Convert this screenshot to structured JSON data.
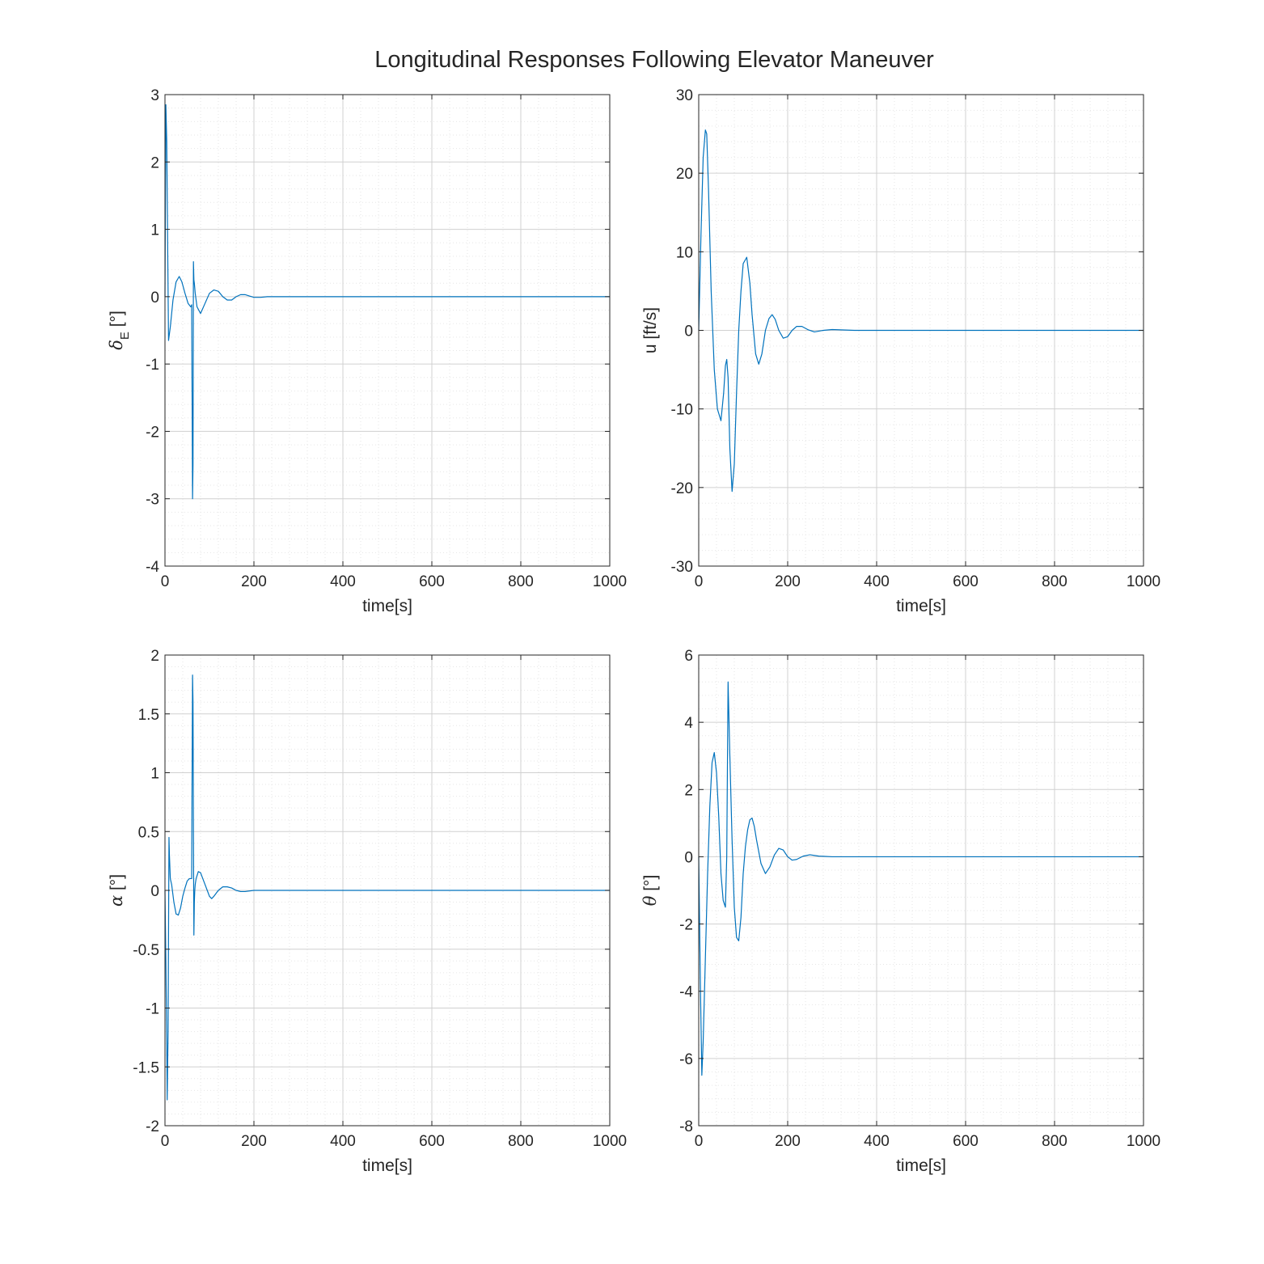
{
  "figure": {
    "title": "Longitudinal Responses Following Elevator Maneuver"
  },
  "colors": {
    "line": "#0072BD",
    "axis": "#262626",
    "grid_major": "#d0d0d0",
    "grid_minor": "#e6e6e6"
  },
  "chart_data": [
    {
      "type": "line",
      "title": "",
      "xlabel": "time[s]",
      "ylabel": "δE [°]",
      "ylabel_symbol": "δ",
      "ylabel_sub": "E",
      "ylabel_unit": "[°]",
      "xlim": [
        0,
        1000
      ],
      "ylim": [
        -4,
        3
      ],
      "xticks": [
        0,
        200,
        400,
        600,
        800,
        1000
      ],
      "yticks": [
        -4,
        -3,
        -2,
        -1,
        0,
        1,
        2,
        3
      ],
      "grid": true,
      "series": [
        {
          "x": [
            0,
            2,
            4,
            6,
            8,
            12,
            18,
            25,
            32,
            38,
            45,
            52,
            58,
            60,
            61,
            62,
            63,
            64,
            65,
            66,
            68,
            72,
            80,
            90,
            100,
            110,
            120,
            130,
            140,
            150,
            160,
            170,
            180,
            190,
            200,
            215,
            230,
            250,
            300,
            400,
            500,
            600,
            700,
            800,
            900,
            1000
          ],
          "y": [
            0,
            2.85,
            2.3,
            0.8,
            -0.65,
            -0.45,
            -0.05,
            0.22,
            0.3,
            0.22,
            0.05,
            -0.1,
            -0.15,
            -0.12,
            -1.5,
            -3.0,
            -2.5,
            0.52,
            0.25,
            0.2,
            0.05,
            -0.15,
            -0.25,
            -0.1,
            0.05,
            0.1,
            0.08,
            0.0,
            -0.05,
            -0.05,
            0.0,
            0.03,
            0.03,
            0.01,
            -0.01,
            -0.01,
            0.0,
            0.0,
            0.0,
            0.0,
            0.0,
            0.0,
            0.0,
            0.0,
            0.0,
            0.0
          ]
        }
      ]
    },
    {
      "type": "line",
      "title": "",
      "xlabel": "time[s]",
      "ylabel": "u [ft/s]",
      "xlim": [
        0,
        1000
      ],
      "ylim": [
        -30,
        30
      ],
      "xticks": [
        0,
        200,
        400,
        600,
        800,
        1000
      ],
      "yticks": [
        -30,
        -20,
        -10,
        0,
        10,
        20,
        30
      ],
      "grid": true,
      "series": [
        {
          "x": [
            0,
            5,
            10,
            15,
            18,
            22,
            28,
            35,
            42,
            50,
            56,
            60,
            63,
            66,
            70,
            75,
            80,
            85,
            90,
            95,
            100,
            108,
            115,
            120,
            128,
            135,
            142,
            150,
            158,
            165,
            172,
            180,
            190,
            200,
            210,
            220,
            232,
            245,
            260,
            280,
            300,
            350,
            400,
            500,
            600,
            700,
            800,
            900,
            1000
          ],
          "y": [
            0,
            12,
            22,
            25.5,
            25,
            18,
            5,
            -5,
            -10,
            -11.5,
            -8,
            -4.5,
            -3.7,
            -6,
            -15,
            -20.5,
            -17,
            -8,
            0,
            5,
            8.5,
            9.3,
            6,
            2,
            -3,
            -4.3,
            -3,
            0,
            1.5,
            2,
            1.4,
            0,
            -1,
            -0.8,
            0,
            0.5,
            0.5,
            0.1,
            -0.2,
            0,
            0.1,
            0,
            0,
            0,
            0,
            0,
            0,
            0,
            0
          ]
        }
      ]
    },
    {
      "type": "line",
      "title": "",
      "xlabel": "time[s]",
      "ylabel": "α [°]",
      "ylabel_symbol": "α",
      "ylabel_unit": "[°]",
      "xlim": [
        0,
        1000
      ],
      "ylim": [
        -2,
        2
      ],
      "xticks": [
        0,
        200,
        400,
        600,
        800,
        1000
      ],
      "yticks": [
        -2,
        -1.5,
        -1,
        -0.5,
        0,
        0.5,
        1,
        1.5,
        2
      ],
      "grid": true,
      "series": [
        {
          "x": [
            0,
            2,
            4,
            5,
            7,
            9,
            10,
            12,
            15,
            20,
            25,
            30,
            35,
            40,
            45,
            50,
            55,
            60,
            61,
            62,
            63,
            64,
            65,
            66,
            67,
            68,
            70,
            75,
            80,
            85,
            90,
            95,
            100,
            105,
            110,
            120,
            130,
            140,
            150,
            160,
            170,
            180,
            200,
            220,
            250,
            300,
            400,
            500,
            600,
            700,
            800,
            900,
            1000
          ],
          "y": [
            0,
            -0.6,
            -1.3,
            -1.78,
            -1.2,
            0.45,
            0.3,
            0.1,
            0.05,
            -0.1,
            -0.2,
            -0.21,
            -0.15,
            -0.05,
            0.02,
            0.08,
            0.1,
            0.1,
            1.0,
            1.83,
            1.6,
            0.5,
            -0.38,
            -0.1,
            0.0,
            0.05,
            0.1,
            0.16,
            0.15,
            0.1,
            0.05,
            0.0,
            -0.05,
            -0.07,
            -0.05,
            0.0,
            0.03,
            0.03,
            0.02,
            0.0,
            -0.01,
            -0.01,
            0.0,
            0.0,
            0.0,
            0.0,
            0.0,
            0.0,
            0.0,
            0.0,
            0.0,
            0.0,
            0.0
          ]
        }
      ]
    },
    {
      "type": "line",
      "title": "",
      "xlabel": "time[s]",
      "ylabel": "θ [°]",
      "ylabel_symbol": "θ",
      "ylabel_unit": "[°]",
      "xlim": [
        0,
        1000
      ],
      "ylim": [
        -8,
        6
      ],
      "xticks": [
        0,
        200,
        400,
        600,
        800,
        1000
      ],
      "yticks": [
        -8,
        -6,
        -4,
        -2,
        0,
        2,
        4,
        6
      ],
      "grid": true,
      "series": [
        {
          "x": [
            0,
            4,
            7,
            10,
            15,
            20,
            25,
            30,
            35,
            40,
            45,
            50,
            55,
            60,
            63,
            66,
            70,
            75,
            80,
            85,
            90,
            95,
            100,
            105,
            110,
            115,
            120,
            125,
            130,
            140,
            150,
            160,
            170,
            180,
            190,
            200,
            210,
            220,
            235,
            250,
            270,
            300,
            350,
            400,
            500,
            600,
            700,
            800,
            900,
            1000
          ],
          "y": [
            0,
            -4,
            -6.5,
            -5.5,
            -3,
            -0.5,
            1.5,
            2.8,
            3.1,
            2.5,
            1.2,
            -0.5,
            -1.3,
            -1.5,
            0,
            5.2,
            3.0,
            0.5,
            -1.5,
            -2.4,
            -2.5,
            -1.8,
            -0.5,
            0.3,
            0.8,
            1.1,
            1.15,
            0.9,
            0.5,
            -0.2,
            -0.5,
            -0.3,
            0.05,
            0.25,
            0.2,
            0.0,
            -0.1,
            -0.08,
            0.02,
            0.06,
            0.02,
            0.0,
            0.0,
            0.0,
            0.0,
            0.0,
            0.0,
            0.0,
            0.0,
            0.0
          ]
        }
      ]
    }
  ]
}
